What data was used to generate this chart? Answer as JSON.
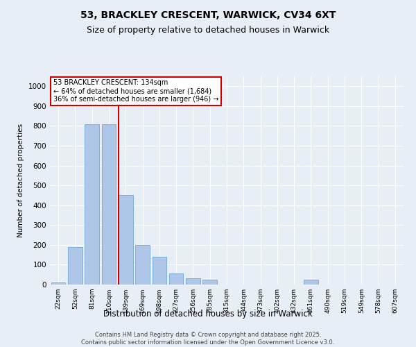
{
  "title1": "53, BRACKLEY CRESCENT, WARWICK, CV34 6XT",
  "title2": "Size of property relative to detached houses in Warwick",
  "xlabel": "Distribution of detached houses by size in Warwick",
  "ylabel": "Number of detached properties",
  "footer1": "Contains HM Land Registry data © Crown copyright and database right 2025.",
  "footer2": "Contains public sector information licensed under the Open Government Licence v3.0.",
  "categories": [
    "22sqm",
    "52sqm",
    "81sqm",
    "110sqm",
    "139sqm",
    "169sqm",
    "198sqm",
    "227sqm",
    "256sqm",
    "285sqm",
    "315sqm",
    "344sqm",
    "373sqm",
    "402sqm",
    "432sqm",
    "461sqm",
    "490sqm",
    "519sqm",
    "549sqm",
    "578sqm",
    "607sqm"
  ],
  "values": [
    10,
    190,
    810,
    810,
    450,
    200,
    140,
    55,
    30,
    25,
    0,
    0,
    0,
    0,
    0,
    25,
    0,
    0,
    0,
    0,
    0
  ],
  "bar_color": "#aec6e8",
  "bar_edgecolor": "#5a9fd4",
  "vline_x_idx": 4,
  "vline_color": "#cc0000",
  "annotation_title": "53 BRACKLEY CRESCENT: 134sqm",
  "annotation_line1": "← 64% of detached houses are smaller (1,684)",
  "annotation_line2": "36% of semi-detached houses are larger (946) →",
  "annotation_box_color": "#cc0000",
  "annotation_bg": "#ffffff",
  "ylim": [
    0,
    1050
  ],
  "yticks": [
    0,
    100,
    200,
    300,
    400,
    500,
    600,
    700,
    800,
    900,
    1000
  ],
  "bg_color": "#e8eef5",
  "grid_color": "#ffffff",
  "title_fontsize": 10,
  "subtitle_fontsize": 9
}
